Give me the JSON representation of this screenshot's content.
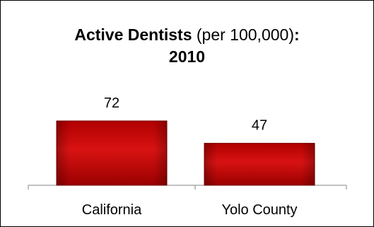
{
  "chart_data": {
    "type": "bar",
    "title_bold": "Active Dentists",
    "title_rest": " (per 100,000)",
    "title_colon": ":",
    "title_line2": "2010",
    "categories": [
      "California",
      "Yolo County"
    ],
    "values": [
      72,
      47
    ],
    "data_labels": [
      "72",
      "47"
    ],
    "ylim": [
      0,
      72
    ],
    "bar_color": "#c00000",
    "gridlines": false,
    "legend": "none"
  }
}
